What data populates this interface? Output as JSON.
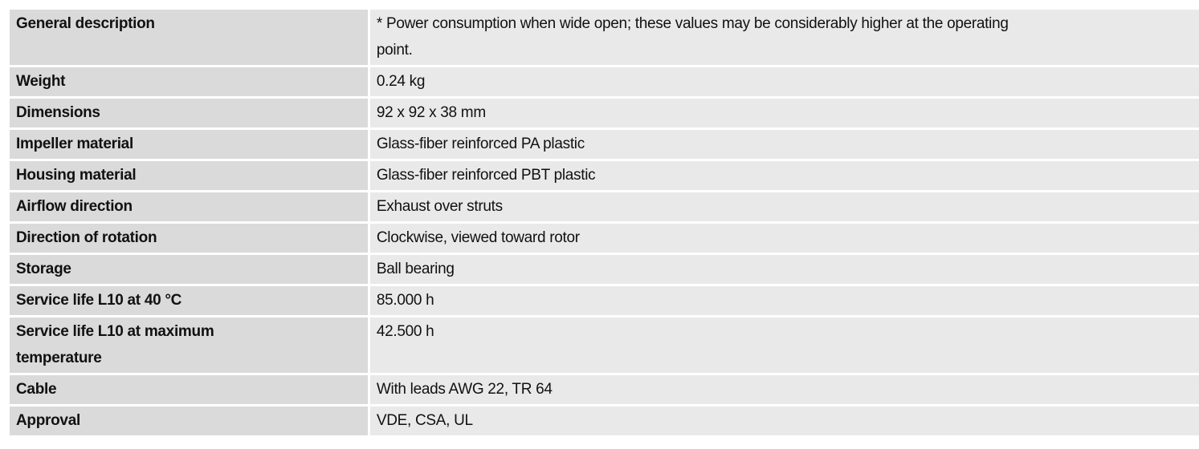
{
  "table": {
    "rows": [
      [
        "General description",
        "* Power consumption when wide open; these values may be considerably higher at the operating point."
      ],
      [
        "Weight",
        "0.24 kg"
      ],
      [
        "Dimensions",
        "92 x 92 x 38 mm"
      ],
      [
        "Impeller material",
        "Glass-fiber reinforced PA plastic"
      ],
      [
        "Housing material",
        "Glass-fiber reinforced PBT plastic"
      ],
      [
        "Airflow direction",
        "Exhaust over struts"
      ],
      [
        "Direction of rotation",
        "Clockwise, viewed toward rotor"
      ],
      [
        "Storage",
        "Ball bearing"
      ],
      [
        "Service life L10 at 40 °C",
        "85.000 h"
      ],
      [
        "Service life L10 at maximum temperature",
        "42.500 h"
      ],
      [
        "Cable",
        "With leads AWG 22, TR 64"
      ],
      [
        "Approval",
        "VDE, CSA, UL"
      ]
    ]
  }
}
